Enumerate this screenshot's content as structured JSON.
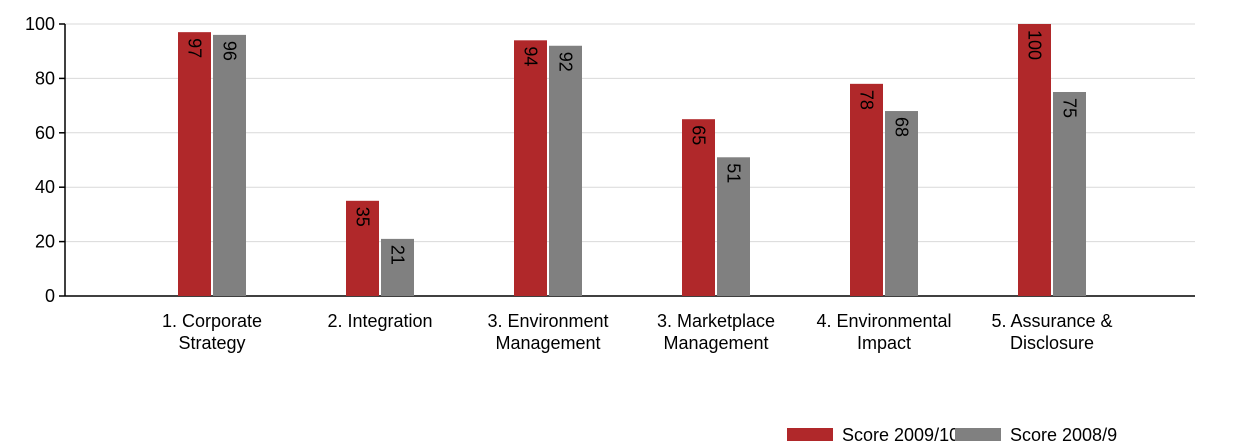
{
  "chart_data": {
    "type": "bar",
    "categories": [
      "1. Corporate Strategy",
      "2. Integration",
      "3. Environment Management",
      "3. Marketplace Management",
      "4. Environmental Impact",
      "5. Assurance & Disclosure"
    ],
    "series": [
      {
        "name": "Score 2009/10",
        "color": "#b0282a",
        "values": [
          97,
          35,
          94,
          65,
          78,
          100
        ]
      },
      {
        "name": "Score 2008/9",
        "color": "#808080",
        "values": [
          96,
          21,
          92,
          51,
          68,
          75
        ]
      }
    ],
    "ylim": [
      0,
      100
    ],
    "yticks": [
      0,
      20,
      40,
      60,
      80,
      100
    ],
    "grid": true,
    "legend": "bottom-right"
  }
}
